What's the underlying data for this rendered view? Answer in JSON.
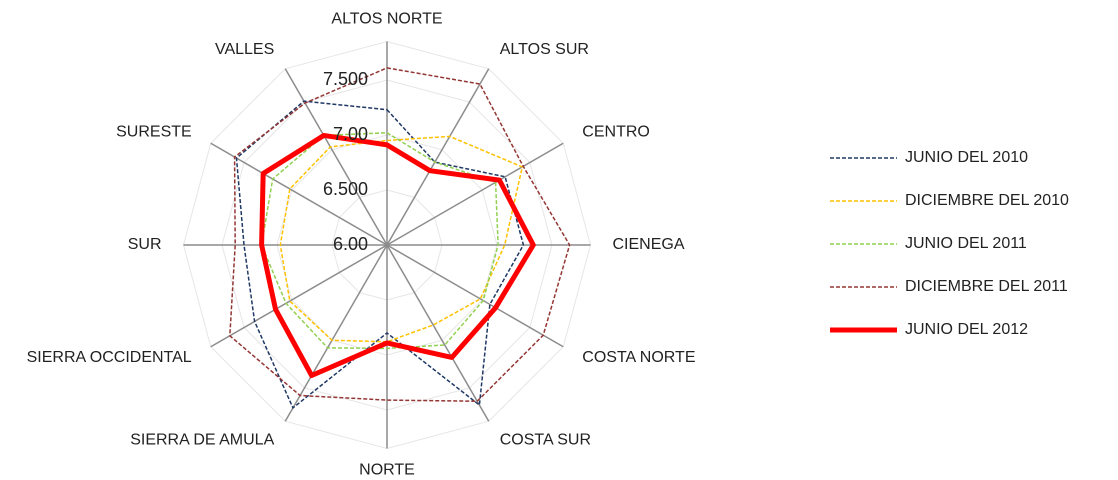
{
  "chart_data": {
    "type": "radar",
    "categories": [
      "ALTOS NORTE",
      "ALTOS SUR",
      "CENTRO",
      "CIENEGA",
      "COSTA NORTE",
      "COSTA SUR",
      "NORTE",
      "SIERRA DE AMULA",
      "SIERRA OCCIDENTAL",
      "SUR",
      "SURESTE",
      "VALLES"
    ],
    "series": [
      {
        "name": "JUNIO DEL 2010",
        "color": "#1f3864",
        "dashed": true,
        "values": [
          7.23,
          6.87,
          7.24,
          7.24,
          7.08,
          7.68,
          6.8,
          7.71,
          7.39,
          7.3,
          7.58,
          7.51
        ]
      },
      {
        "name": "DICIEMBRE DEL 2010",
        "color": "#ffc000",
        "dashed": true,
        "values": [
          6.95,
          7.14,
          7.42,
          7.07,
          6.98,
          6.84,
          6.88,
          7.0,
          7.02,
          6.97,
          7.02,
          7.03
        ]
      },
      {
        "name": "JUNIO DEL 2011",
        "color": "#92d050",
        "dashed": true,
        "values": [
          7.02,
          6.87,
          7.14,
          7.01,
          7.01,
          7.05,
          6.94,
          7.08,
          7.06,
          7.14,
          7.2,
          7.15
        ]
      },
      {
        "name": "DICIEMBRE DEL 2011",
        "color": "#943634",
        "dashed": true,
        "values": [
          7.61,
          7.69,
          7.43,
          7.66,
          7.64,
          7.64,
          7.41,
          7.58,
          7.65,
          7.38,
          7.6,
          7.49
        ]
      },
      {
        "name": "JUNIO DEL 2012",
        "color": "#ff0000",
        "dashed": false,
        "values": [
          6.91,
          6.78,
          7.18,
          7.33,
          7.14,
          7.18,
          6.89,
          7.37,
          7.17,
          7.14,
          7.3,
          7.15
        ]
      }
    ],
    "ylim": [
      6,
      7.85
    ],
    "yticks": [
      {
        "value": 6,
        "label": "6.00"
      },
      {
        "value": 6.5,
        "label": "6.500"
      },
      {
        "value": 7,
        "label": "7.00"
      },
      {
        "value": 7.5,
        "label": "7.500"
      }
    ],
    "grid": true,
    "legend": "right"
  }
}
